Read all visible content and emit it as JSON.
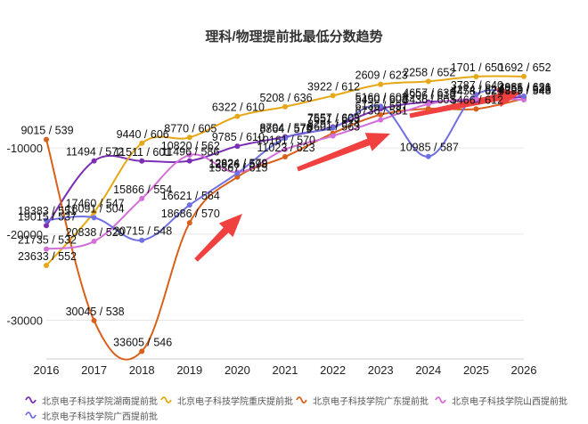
{
  "chart_data": {
    "type": "line",
    "title": "理科/物理提前批最低分数趋势",
    "x": [
      2016,
      2017,
      2018,
      2019,
      2020,
      2021,
      2022,
      2023,
      2024,
      2025,
      2026
    ],
    "x_ticks": [
      "2016",
      "2017",
      "2018",
      "2019",
      "2020",
      "2021",
      "2022",
      "2023",
      "2024",
      "2025",
      "2026"
    ],
    "y_ticks": [
      {
        "value": -10000,
        "label": "-10000"
      },
      {
        "value": -20000,
        "label": "-20000"
      },
      {
        "value": -30000,
        "label": "-30000"
      }
    ],
    "ylim": [
      -34500,
      1500
    ],
    "grid": true,
    "legend_position": "bottom",
    "series": [
      {
        "name": "北京电子科技学院湖南提前批",
        "color": "#7b2fb5",
        "points": [
          {
            "x": 2016,
            "y": -19015,
            "label": "19015 / 537"
          },
          {
            "x": 2017,
            "y": -11494,
            "label": "11494 / 572"
          },
          {
            "x": 2018,
            "y": -11511,
            "label": "11511 / 601"
          },
          {
            "x": 2019,
            "y": -11496,
            "label": "11496 / 586"
          },
          {
            "x": 2020,
            "y": -9785,
            "label": "9785 / 610"
          },
          {
            "x": 2021,
            "y": -8704,
            "label": "8704 / 578"
          },
          {
            "x": 2022,
            "y": -7557,
            "label": "7557 / 605"
          },
          {
            "x": 2023,
            "y": -5450,
            "label": "5450 / 608"
          },
          {
            "x": 2024,
            "y": -4657,
            "label": "4657 / 633"
          },
          {
            "x": 2025,
            "y": -4458,
            "label": "4458 / 621"
          },
          {
            "x": 2026,
            "y": -4055,
            "label": "4055 / 636"
          }
        ]
      },
      {
        "name": "北京电子科技学院重庆提前批",
        "color": "#e6a817",
        "points": [
          {
            "x": 2016,
            "y": -23633,
            "label": "23633 / 552"
          },
          {
            "x": 2017,
            "y": -17460,
            "label": "17460 / 547"
          },
          {
            "x": 2018,
            "y": -9440,
            "label": "9440 / 606"
          },
          {
            "x": 2019,
            "y": -8770,
            "label": "8770 / 605"
          },
          {
            "x": 2020,
            "y": -6322,
            "label": "6322 / 610"
          },
          {
            "x": 2021,
            "y": -5208,
            "label": "5208 / 636"
          },
          {
            "x": 2022,
            "y": -3922,
            "label": "3922 / 612"
          },
          {
            "x": 2023,
            "y": -2609,
            "label": "2609 / 623"
          },
          {
            "x": 2024,
            "y": -2258,
            "label": "2258 / 652"
          },
          {
            "x": 2025,
            "y": -1701,
            "label": "1701 / 650"
          },
          {
            "x": 2026,
            "y": -1692,
            "label": "1692 / 652"
          }
        ]
      },
      {
        "name": "北京电子科技学院广东提前批",
        "color": "#d9601b",
        "points": [
          {
            "x": 2016,
            "y": -9015,
            "label": "9015 / 539"
          },
          {
            "x": 2017,
            "y": -30045,
            "label": "30045 / 538"
          },
          {
            "x": 2018,
            "y": -33605,
            "label": "33605 / 546"
          },
          {
            "x": 2019,
            "y": -18686,
            "label": "18686 / 570"
          },
          {
            "x": 2020,
            "y": -13367,
            "label": "13367 / 615"
          },
          {
            "x": 2021,
            "y": -11023,
            "label": "11023 / 623"
          },
          {
            "x": 2022,
            "y": -8291,
            "label": "8291 / 574"
          },
          {
            "x": 2023,
            "y": -6136,
            "label": "6136 / 597"
          },
          {
            "x": 2024,
            "y": -5436,
            "label": "5436 / 603"
          },
          {
            "x": 2025,
            "y": -5466,
            "label": "5466 / 612"
          },
          {
            "x": 2026,
            "y": -4255,
            "label": "4255 / 626"
          }
        ]
      },
      {
        "name": "北京电子科技学院山西提前批",
        "color": "#d46ed8",
        "points": [
          {
            "x": 2016,
            "y": -21735,
            "label": "21735 / 532"
          },
          {
            "x": 2017,
            "y": -20838,
            "label": "20838 / 520"
          },
          {
            "x": 2018,
            "y": -15866,
            "label": "15866 / 554"
          },
          {
            "x": 2019,
            "y": -10820,
            "label": "10820 / 562"
          },
          {
            "x": 2020,
            "y": -12824,
            "label": "12824 / 579"
          },
          {
            "x": 2021,
            "y": -10161,
            "label": "10161 / 570"
          },
          {
            "x": 2022,
            "y": -8601,
            "label": "8601 / 563"
          },
          {
            "x": 2023,
            "y": -6736,
            "label": "6736 / 581"
          },
          {
            "x": 2024,
            "y": -4906,
            "label": "4906 / 615"
          },
          {
            "x": 2025,
            "y": -4274,
            "label": "4274 / 624"
          },
          {
            "x": 2026,
            "y": -4399,
            "label": "4399 / 548"
          }
        ]
      },
      {
        "name": "北京电子科技学院广西提前批",
        "color": "#6f6fe3",
        "points": [
          {
            "x": 2016,
            "y": -18383,
            "label": "18383 / 551"
          },
          {
            "x": 2017,
            "y": -18091,
            "label": "18091 / 504"
          },
          {
            "x": 2018,
            "y": -20715,
            "label": "20715 / 548"
          },
          {
            "x": 2019,
            "y": -16621,
            "label": "16621 / 564"
          },
          {
            "x": 2020,
            "y": -12926,
            "label": "12926 / 598"
          },
          {
            "x": 2021,
            "y": -8864,
            "label": "8864 / 579"
          },
          {
            "x": 2022,
            "y": -7651,
            "label": "7651 / 603"
          },
          {
            "x": 2023,
            "y": -5160,
            "label": "5160 / 603"
          },
          {
            "x": 2024,
            "y": -10985,
            "label": "10985 / 587"
          },
          {
            "x": 2025,
            "y": -3787,
            "label": "3787 / 640"
          },
          {
            "x": 2026,
            "y": -3981,
            "label": "3981 / 621"
          }
        ]
      }
    ]
  }
}
